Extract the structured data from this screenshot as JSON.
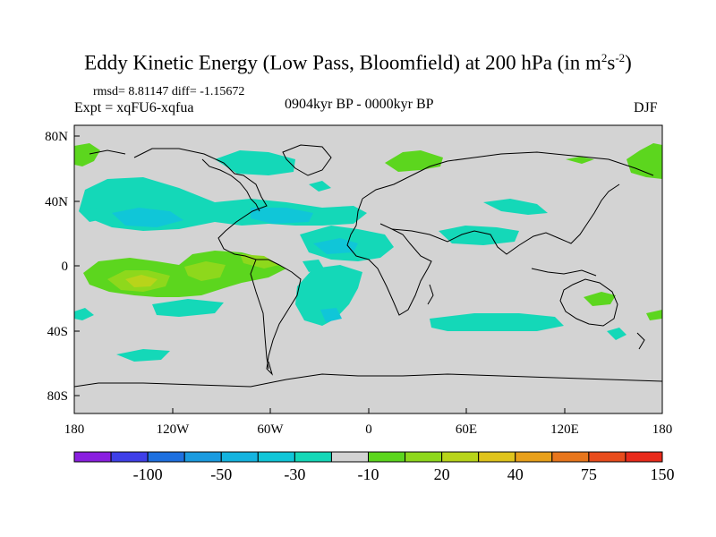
{
  "title": {
    "main": "Eddy Kinetic Energy (Low Pass, Bloomfield) at 200 hPa (in m",
    "sup1": "2",
    "mid": "s",
    "sup2": "-2",
    "end": ")"
  },
  "stats": "rmsd= 8.81147 diff= -1.15672",
  "expt": "Expt = xqFU6-xqfua",
  "period": "0904kyr BP - 0000kyr BP",
  "season": "DJF",
  "map": {
    "ocean_color": "#d3d3d3",
    "lon_ticks": [
      "180",
      "120W",
      "60W",
      "0",
      "60E",
      "120E",
      "180"
    ],
    "lat_ticks": [
      "80N",
      "40N",
      "0",
      "40S",
      "80S"
    ]
  },
  "colorbar": {
    "colors": [
      "#8a1fe0",
      "#3f3fe8",
      "#1e70e0",
      "#1a9be0",
      "#14b4e0",
      "#10c6d8",
      "#14d8b8",
      "#d3d3d3",
      "#5cd61e",
      "#8ed81c",
      "#b8d41a",
      "#e0c41c",
      "#e8a01a",
      "#e8761c",
      "#e84c1c",
      "#e82a1a"
    ],
    "labels": [
      "-100",
      "-50",
      "-30",
      "-10",
      "20",
      "40",
      "75",
      "150"
    ]
  }
}
